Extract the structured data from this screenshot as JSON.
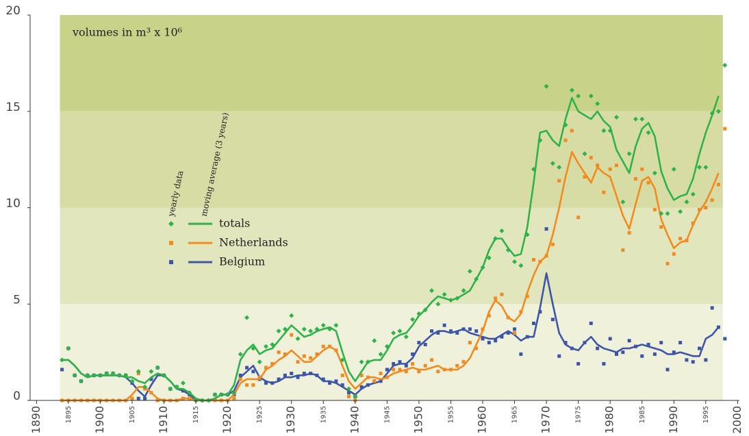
{
  "chart_data": {
    "type": "line",
    "annotation": "volumes in m³ x 10⁶",
    "legend_headers": [
      "yearly data",
      "moving average (3 years)"
    ],
    "xlim": [
      1889,
      2000
    ],
    "xticks": [
      1890,
      1895,
      1900,
      1905,
      1910,
      1915,
      1920,
      1925,
      1930,
      1935,
      1940,
      1945,
      1950,
      1955,
      1960,
      1965,
      1970,
      1975,
      1980,
      1985,
      1990,
      1995,
      2000
    ],
    "ylim": [
      0,
      20
    ],
    "yticks": [
      0,
      5,
      10,
      15,
      20
    ],
    "band_colors": [
      "#eff1da",
      "#e2e6bd",
      "#d6dca3",
      "#c8d289"
    ],
    "x": [
      1894,
      1895,
      1896,
      1897,
      1898,
      1899,
      1900,
      1901,
      1902,
      1903,
      1904,
      1905,
      1906,
      1907,
      1908,
      1909,
      1910,
      1911,
      1912,
      1913,
      1914,
      1915,
      1916,
      1917,
      1918,
      1919,
      1920,
      1921,
      1922,
      1923,
      1924,
      1925,
      1926,
      1927,
      1928,
      1929,
      1930,
      1931,
      1932,
      1933,
      1934,
      1935,
      1936,
      1937,
      1938,
      1939,
      1940,
      1941,
      1942,
      1943,
      1944,
      1945,
      1946,
      1947,
      1948,
      1949,
      1950,
      1951,
      1952,
      1953,
      1954,
      1955,
      1956,
      1957,
      1958,
      1959,
      1960,
      1961,
      1962,
      1963,
      1964,
      1965,
      1966,
      1967,
      1968,
      1969,
      1970,
      1971,
      1972,
      1973,
      1974,
      1975,
      1976,
      1977,
      1978,
      1979,
      1980,
      1981,
      1982,
      1983,
      1984,
      1985,
      1986,
      1987,
      1988,
      1989,
      1990,
      1991,
      1992,
      1993,
      1994,
      1995,
      1996,
      1997,
      1998
    ],
    "series": [
      {
        "name": "totals",
        "color": "#2eb34a",
        "marker": "diamond",
        "values": [
          2.1,
          2.1,
          1.8,
          1.4,
          1.2,
          1.3,
          1.3,
          1.3,
          1.3,
          1.3,
          1.2,
          1.2,
          1.0,
          0.9,
          1.2,
          1.4,
          1.3,
          1.0,
          0.6,
          0.6,
          0.4,
          0.1,
          0,
          0,
          0.1,
          0.3,
          0.3,
          0.8,
          2.1,
          2.6,
          2.9,
          2.4,
          2.6,
          2.7,
          3.1,
          3.5,
          3.9,
          3.6,
          3.3,
          3.4,
          3.6,
          3.7,
          3.8,
          3.6,
          2.5,
          1.5,
          1.0,
          1.5,
          2.0,
          2.1,
          2.1,
          2.6,
          3.2,
          3.4,
          3.5,
          3.9,
          4.4,
          4.7,
          5.1,
          5.4,
          5.3,
          5.2,
          5.3,
          5.5,
          5.7,
          6.3,
          6.9,
          7.8,
          8.4,
          8.4,
          7.9,
          7.5,
          7.6,
          9.0,
          11.3,
          13.9,
          14.0,
          13.5,
          13.2,
          14.6,
          15.7,
          15.0,
          14.8,
          14.6,
          15.0,
          14.5,
          14.2,
          13.0,
          12.4,
          11.8,
          13.2,
          14.1,
          14.4,
          13.7,
          11.9,
          11.0,
          10.4,
          10.6,
          10.7,
          11.5,
          12.8,
          13.9,
          14.8,
          15.8,
          null
        ],
        "yearly": [
          2.1,
          2.7,
          1.3,
          1.0,
          1.3,
          1.3,
          1.3,
          1.4,
          1.4,
          1.3,
          1.3,
          1.0,
          1.5,
          0.7,
          1.5,
          1.7,
          1.3,
          0.6,
          0.7,
          0.9,
          0.4,
          0,
          0,
          0,
          0.3,
          0.3,
          0.3,
          0.4,
          2.4,
          4.3,
          2.7,
          2.0,
          2.8,
          2.9,
          3.6,
          3.7,
          4.4,
          3.2,
          3.7,
          3.6,
          3.7,
          3.9,
          3.7,
          3.9,
          2.1,
          0.6,
          0.2,
          2.0,
          2.0,
          3.1,
          2.4,
          2.8,
          3.5,
          3.6,
          3.3,
          4.2,
          4.5,
          4.7,
          5.7,
          5.0,
          5.5,
          5.2,
          5.3,
          5.7,
          6.7,
          6.3,
          6.9,
          7.4,
          8.4,
          8.8,
          7.8,
          7.2,
          7.0,
          8.6,
          12.0,
          13.5,
          16.3,
          12.3,
          12.1,
          14.3,
          16.1,
          15.8,
          12.8,
          15.8,
          15.4,
          14.0,
          14.0,
          14.7,
          10.3,
          12.8,
          14.6,
          14.6,
          13.9,
          11.8,
          9.7,
          9.7,
          12.0,
          9.8,
          10.3,
          10.7,
          12.1,
          12.1,
          14.9,
          15.0,
          17.4
        ]
      },
      {
        "name": "Netherlands",
        "color": "#f28a1e",
        "marker": "square",
        "values": [
          0,
          0,
          0,
          0,
          0,
          0,
          0,
          0,
          0,
          0,
          0,
          0.3,
          0.7,
          0.7,
          0.4,
          0.1,
          0,
          0,
          0,
          0.1,
          0.1,
          0,
          0,
          0,
          0,
          0,
          0,
          0.3,
          0.9,
          1.1,
          1.1,
          1.1,
          1.6,
          1.8,
          2.1,
          2.3,
          2.6,
          2.3,
          2.0,
          2.0,
          2.3,
          2.6,
          2.8,
          2.6,
          1.8,
          1.0,
          0.6,
          0.9,
          1.2,
          1.2,
          1.1,
          1.2,
          1.4,
          1.5,
          1.6,
          1.7,
          1.6,
          1.6,
          1.7,
          1.8,
          1.6,
          1.6,
          1.6,
          1.8,
          2.2,
          2.9,
          3.6,
          4.6,
          5.2,
          4.9,
          4.3,
          4.1,
          4.5,
          5.6,
          6.5,
          7.2,
          7.5,
          8.6,
          10.0,
          11.6,
          12.9,
          12.3,
          11.8,
          11.3,
          12.1,
          11.8,
          11.6,
          10.6,
          9.6,
          8.9,
          10.2,
          11.4,
          11.6,
          11.0,
          9.4,
          8.6,
          7.9,
          8.2,
          8.3,
          9.1,
          9.8,
          10.3,
          11.0,
          11.8,
          null
        ],
        "yearly": [
          0,
          0,
          0,
          0,
          0,
          0,
          0,
          0,
          0,
          0,
          0,
          0.1,
          1.4,
          0.6,
          0.4,
          0,
          0,
          0,
          0,
          0.1,
          0.1,
          0,
          0,
          0,
          0,
          0,
          0,
          0.1,
          1.1,
          0.8,
          0.8,
          1.2,
          1.7,
          1.9,
          2.5,
          2.4,
          3.4,
          2.0,
          2.3,
          2.2,
          2.4,
          2.8,
          2.8,
          2.6,
          1.3,
          0.2,
          0,
          1.3,
          1.2,
          1.0,
          1.4,
          1.2,
          1.6,
          1.6,
          1.5,
          1.9,
          1.5,
          1.8,
          2.1,
          1.5,
          1.6,
          1.6,
          1.8,
          2.0,
          3.0,
          2.7,
          3.7,
          4.4,
          5.3,
          5.5,
          4.3,
          3.5,
          4.6,
          5.4,
          7.3,
          7.2,
          7.5,
          8.1,
          11.4,
          13.5,
          14.0,
          9.5,
          11.6,
          12.6,
          12.2,
          10.8,
          12.0,
          12.2,
          7.8,
          8.7,
          11.5,
          12.0,
          11.3,
          9.9,
          9.0,
          7.1,
          7.6,
          8.4,
          8.3,
          9.2,
          9.9,
          10.0,
          10.4,
          11.2,
          14.1
        ]
      },
      {
        "name": "Belgium",
        "color": "#3d55a8",
        "marker": "square",
        "values": [
          2.1,
          2.1,
          1.8,
          1.4,
          1.2,
          1.3,
          1.3,
          1.3,
          1.3,
          1.3,
          1.2,
          0.9,
          0.5,
          0.2,
          0.8,
          1.3,
          1.3,
          1.0,
          0.6,
          0.5,
          0.3,
          0.0,
          0.0,
          0.0,
          0.1,
          0.3,
          0.3,
          0.5,
          1.2,
          1.5,
          1.8,
          1.2,
          1.0,
          0.9,
          1.0,
          1.2,
          1.2,
          1.3,
          1.3,
          1.4,
          1.3,
          1.0,
          1.0,
          0.9,
          0.7,
          0.5,
          0.3,
          0.6,
          0.8,
          0.9,
          1.0,
          1.4,
          1.8,
          1.9,
          1.9,
          2.2,
          2.8,
          3.1,
          3.4,
          3.6,
          3.6,
          3.5,
          3.6,
          3.7,
          3.5,
          3.4,
          3.3,
          3.2,
          3.2,
          3.4,
          3.6,
          3.4,
          3.1,
          3.3,
          3.3,
          4.8,
          6.6,
          5.0,
          3.5,
          2.9,
          2.7,
          2.6,
          3.0,
          3.3,
          2.9,
          2.7,
          2.6,
          2.5,
          2.7,
          2.7,
          2.8,
          2.9,
          2.8,
          2.7,
          2.6,
          2.4,
          2.4,
          2.5,
          2.4,
          2.3,
          2.3,
          3.2,
          3.4,
          3.8,
          null
        ],
        "yearly": [
          1.6,
          2.7,
          1.3,
          1.0,
          1.3,
          1.3,
          1.3,
          1.4,
          1.4,
          1.3,
          1.3,
          0.9,
          0.1,
          0.1,
          1.1,
          1.7,
          1.3,
          0.6,
          0.7,
          0.5,
          0.3,
          0,
          0,
          0,
          0.3,
          0.3,
          0.3,
          0.3,
          1.3,
          1.7,
          1.5,
          1.1,
          0.9,
          0.9,
          1.1,
          1.3,
          1.4,
          1.2,
          1.4,
          1.4,
          1.3,
          1.1,
          0.9,
          1.0,
          0.8,
          0.4,
          0.2,
          0.7,
          0.8,
          1.0,
          1.0,
          1.6,
          1.9,
          2.0,
          1.8,
          2.4,
          3.0,
          2.9,
          3.6,
          3.5,
          3.9,
          3.6,
          3.5,
          3.7,
          3.7,
          3.6,
          3.2,
          3.0,
          3.1,
          3.3,
          3.5,
          3.7,
          2.4,
          3.3,
          4.0,
          4.6,
          8.9,
          4.2,
          2.3,
          3.0,
          2.7,
          1.9,
          3.0,
          4.0,
          2.7,
          1.9,
          3.2,
          2.4,
          2.5,
          3.1,
          2.8,
          2.3,
          2.9,
          2.4,
          3.0,
          1.6,
          2.5,
          3.0,
          2.1,
          2.0,
          2.7,
          2.1,
          4.8,
          3.8,
          3.2
        ]
      }
    ]
  }
}
